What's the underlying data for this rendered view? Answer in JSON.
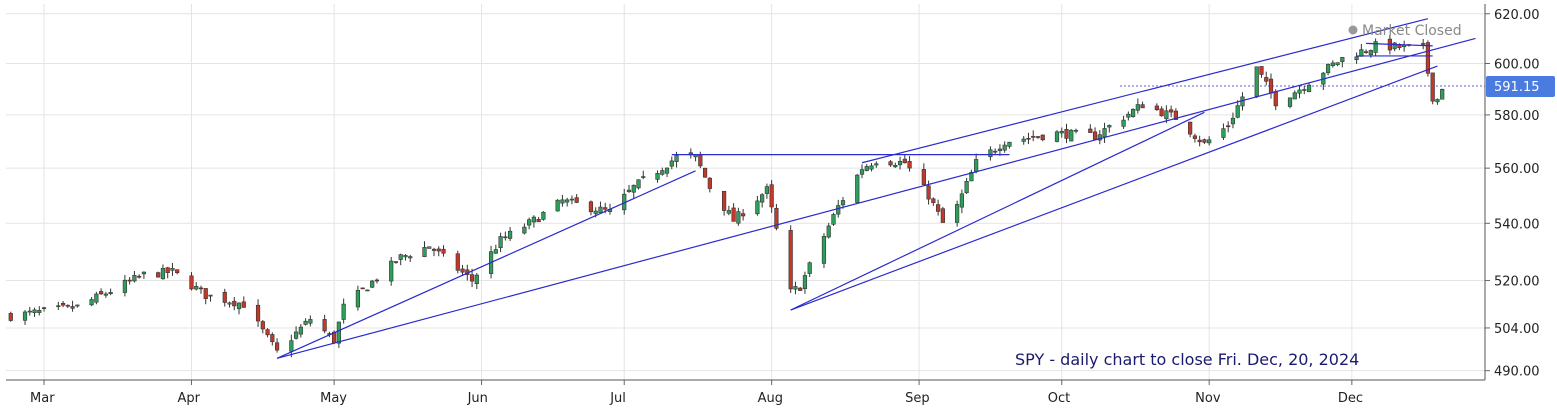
{
  "status": {
    "label": "Market Closed"
  },
  "last_price": {
    "label": "591.15"
  },
  "caption": "SPY - daily chart to close Fri. Dec, 20, 2024",
  "colors": {
    "up": "#2e9e5b",
    "down": "#c0392b",
    "wick": "#333333",
    "trendline": "#2a2ad0",
    "price_tag": "#4a7be0",
    "grid": "#e4e4e4"
  },
  "chart_data": {
    "type": "candlestick",
    "ticker": "SPY",
    "interval": "daily",
    "y_axis": {
      "position": "right",
      "scale": "log",
      "ylim": [
        487,
        624
      ],
      "ticks": [
        620,
        600,
        580,
        560,
        540,
        520,
        504,
        490
      ],
      "tick_labels": [
        "620.00",
        "600.00",
        "580.00",
        "560.00",
        "540.00",
        "520.00",
        "504.00",
        "490.00"
      ]
    },
    "x_axis": {
      "xlim": [
        "2024-02-22",
        "2024-12-29"
      ],
      "months": [
        {
          "date": "2024-03-01",
          "label": "Mar"
        },
        {
          "date": "2024-04-01",
          "label": "Apr"
        },
        {
          "date": "2024-05-01",
          "label": "May"
        },
        {
          "date": "2024-06-01",
          "label": "Jun"
        },
        {
          "date": "2024-07-01",
          "label": "Jul"
        },
        {
          "date": "2024-08-01",
          "label": "Aug"
        },
        {
          "date": "2024-09-01",
          "label": "Sep"
        },
        {
          "date": "2024-10-01",
          "label": "Oct"
        },
        {
          "date": "2024-11-01",
          "label": "Nov"
        },
        {
          "date": "2024-12-01",
          "label": "Dec"
        }
      ]
    },
    "grid": true,
    "last_price": 591.15,
    "path": [
      [
        "2024-02-23",
        508
      ],
      [
        "2024-03-08",
        511
      ],
      [
        "2024-03-22",
        522
      ],
      [
        "2024-03-28",
        523
      ],
      [
        "2024-04-04",
        515
      ],
      [
        "2024-04-12",
        512
      ],
      [
        "2024-04-19",
        496
      ],
      [
        "2024-04-26",
        507
      ],
      [
        "2024-05-01",
        500
      ],
      [
        "2024-05-03",
        511
      ],
      [
        "2024-05-15",
        528
      ],
      [
        "2024-05-21",
        532
      ],
      [
        "2024-05-30",
        520
      ],
      [
        "2024-06-05",
        534
      ],
      [
        "2024-06-12",
        541
      ],
      [
        "2024-06-18",
        548
      ],
      [
        "2024-06-28",
        544
      ],
      [
        "2024-07-03",
        553
      ],
      [
        "2024-07-12",
        564
      ],
      [
        "2024-07-16",
        564
      ],
      [
        "2024-07-19",
        553
      ],
      [
        "2024-07-24",
        541
      ],
      [
        "2024-07-31",
        552
      ],
      [
        "2024-08-05",
        516
      ],
      [
        "2024-08-07",
        518
      ],
      [
        "2024-08-15",
        546
      ],
      [
        "2024-08-20",
        560
      ],
      [
        "2024-08-23",
        563
      ],
      [
        "2024-08-29",
        562
      ],
      [
        "2024-09-03",
        550
      ],
      [
        "2024-09-06",
        540
      ],
      [
        "2024-09-09",
        546
      ],
      [
        "2024-09-13",
        562
      ],
      [
        "2024-09-19",
        570
      ],
      [
        "2024-09-30",
        573
      ],
      [
        "2024-10-08",
        572
      ],
      [
        "2024-10-18",
        584
      ],
      [
        "2024-10-25",
        579
      ],
      [
        "2024-10-31",
        569
      ],
      [
        "2024-11-05",
        576
      ],
      [
        "2024-11-11",
        598
      ],
      [
        "2024-11-15",
        585
      ],
      [
        "2024-11-20",
        590
      ],
      [
        "2024-11-25",
        597
      ],
      [
        "2024-11-29",
        602
      ],
      [
        "2024-12-06",
        607
      ],
      [
        "2024-12-16",
        606
      ],
      [
        "2024-12-18",
        587
      ],
      [
        "2024-12-19",
        586
      ],
      [
        "2024-12-20",
        591
      ]
    ],
    "annotation_lines": [
      {
        "from": [
          "2024-04-19",
          494
        ],
        "to": [
          "2024-07-16",
          559
        ]
      },
      {
        "from": [
          "2024-04-19",
          494
        ],
        "to": [
          "2024-12-27",
          610
        ]
      },
      {
        "from": [
          "2024-07-11",
          565
        ],
        "to": [
          "2024-09-20",
          565
        ]
      },
      {
        "from": [
          "2024-08-05",
          510
        ],
        "to": [
          "2024-10-31",
          581
        ]
      },
      {
        "from": [
          "2024-08-05",
          510
        ],
        "to": [
          "2024-12-19",
          599
        ]
      },
      {
        "from": [
          "2024-08-20",
          562
        ],
        "to": [
          "2024-12-17",
          618
        ]
      },
      {
        "from": [
          "2024-12-02",
          603
        ],
        "to": [
          "2024-12-18",
          603
        ]
      },
      {
        "from": [
          "2024-12-04",
          608
        ],
        "to": [
          "2024-12-18",
          607
        ]
      }
    ]
  }
}
